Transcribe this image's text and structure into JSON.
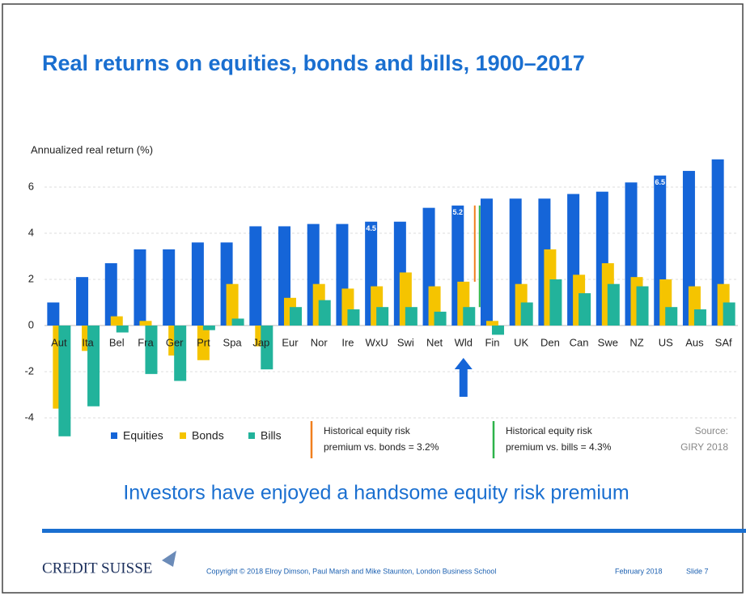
{
  "chart_data": {
    "type": "bar",
    "title": "Real returns on equities, bonds and bills, 1900–2017",
    "y_label": "Annualized real return (%)",
    "subtitle": "Investors have enjoyed a handsome equity risk premium",
    "categories": [
      "Aut",
      "Ita",
      "Bel",
      "Fra",
      "Ger",
      "Prt",
      "Spa",
      "Jap",
      "Eur",
      "Nor",
      "Ire",
      "WxU",
      "Swi",
      "Net",
      "Wld",
      "Fin",
      "UK",
      "Den",
      "Can",
      "Swe",
      "NZ",
      "US",
      "Aus",
      "SAf"
    ],
    "series": [
      {
        "name": "Equities",
        "color": "#1565d8",
        "values": [
          1.0,
          2.1,
          2.7,
          3.3,
          3.3,
          3.6,
          3.6,
          4.3,
          4.3,
          4.4,
          4.4,
          4.5,
          4.5,
          5.1,
          5.2,
          5.5,
          5.5,
          5.5,
          5.7,
          5.8,
          6.2,
          6.5,
          6.7,
          7.2
        ],
        "value_labels": [
          null,
          null,
          null,
          null,
          null,
          null,
          null,
          null,
          null,
          null,
          null,
          "4.5",
          null,
          null,
          "5.2",
          null,
          null,
          null,
          null,
          null,
          null,
          "6.5",
          null,
          null
        ]
      },
      {
        "name": "Bonds",
        "color": "#f5c400",
        "values": [
          -3.6,
          -1.1,
          0.4,
          0.2,
          -1.3,
          -1.5,
          1.8,
          -0.9,
          1.2,
          1.8,
          1.6,
          1.7,
          2.3,
          1.7,
          1.9,
          0.2,
          1.8,
          3.3,
          2.2,
          2.7,
          2.1,
          2.0,
          1.7,
          1.8
        ]
      },
      {
        "name": "Bills",
        "color": "#22b39b",
        "values": [
          -4.8,
          -3.5,
          -0.3,
          -2.1,
          -2.4,
          -0.2,
          0.3,
          -1.9,
          0.8,
          1.1,
          0.7,
          0.8,
          0.8,
          0.6,
          0.8,
          -0.4,
          1.0,
          2.0,
          1.4,
          1.8,
          1.7,
          0.8,
          0.7,
          1.0
        ]
      }
    ],
    "ylim": [
      -5,
      7.5
    ],
    "yticks": [
      6,
      4,
      2,
      0,
      -2,
      -4
    ],
    "grid": true,
    "annotations": [
      {
        "lines": [
          "Historical equity risk",
          "premium vs. bonds = 3.2%"
        ],
        "color": "#f07f1e"
      },
      {
        "lines": [
          "Historical equity risk",
          "premium vs. bills = 4.3%"
        ],
        "color": "#2db34a"
      }
    ],
    "source": [
      "Source:",
      "GIRY 2018"
    ]
  },
  "footer": {
    "brand": "CREDIT SUISSE",
    "copyright": "Copyright © 2018 Elroy Dimson, Paul Marsh and Mike Staunton, London Business School",
    "date": "February 2018",
    "slide": "Slide 7"
  }
}
